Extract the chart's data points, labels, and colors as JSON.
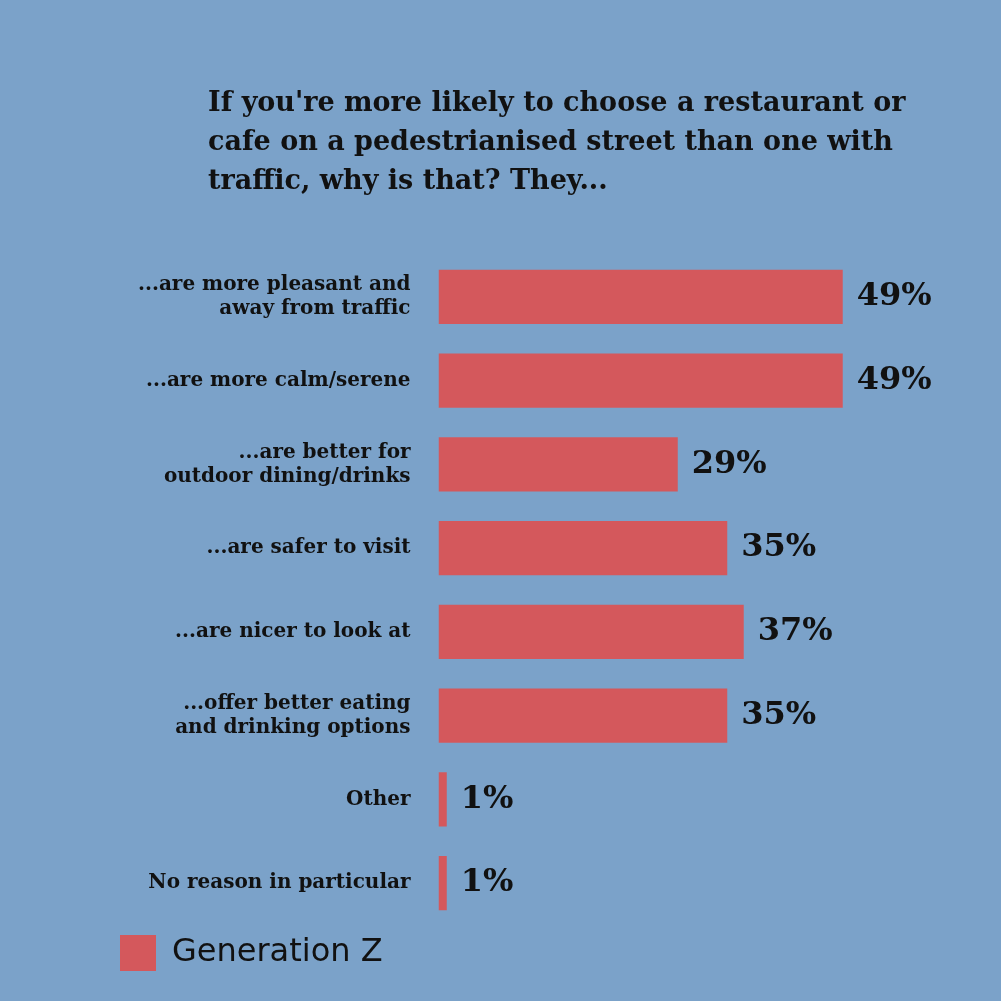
{
  "chart_data": {
    "type": "bar",
    "orientation": "horizontal",
    "title": "If you're more likely to choose a restaurant or cafe on a pedestrianised street than one with traffic, why is that? They...",
    "categories": [
      "...are more pleasant and away from traffic",
      "...are more calm/serene",
      "...are better for outdoor dining/drinks",
      "...are safer to visit",
      "...are nicer to look at",
      "...offer better eating and drinking options",
      "Other",
      "No reason in particular"
    ],
    "series": [
      {
        "name": "Generation Z",
        "color": "#d4585c",
        "values": [
          49,
          49,
          29,
          35,
          37,
          35,
          1,
          1
        ],
        "value_labels": [
          "49%",
          "49%",
          "29%",
          "35%",
          "37%",
          "35%",
          "1%",
          "1%"
        ]
      }
    ],
    "grid": false,
    "legend": "bottom left"
  }
}
